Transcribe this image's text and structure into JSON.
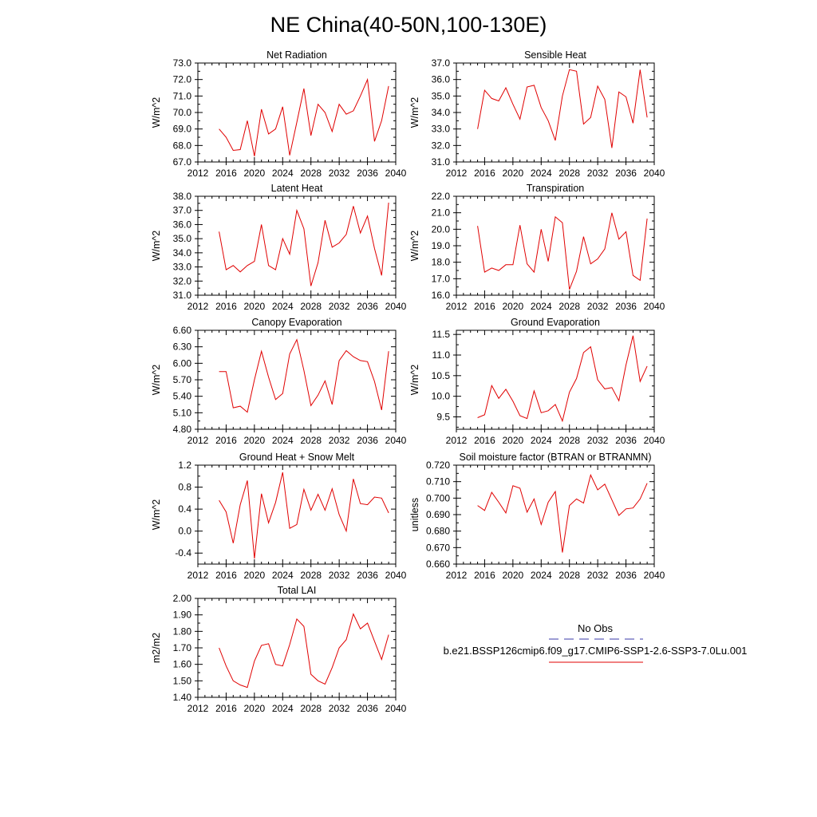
{
  "figure_title": "NE China(40-50N,100-130E)",
  "legend": {
    "obs_label": "No Obs",
    "obs_color": "#3a3aa8",
    "model_label": "b.e21.BSSP126cmip6.f09_g17.CMIP6-SSP1-2.6-SSP3-7.0Lu.001",
    "model_color": "#e00000"
  },
  "chart_data": [
    {
      "type": "line",
      "title": "Net Radiation",
      "ylabel": "W/m^2",
      "xlim": [
        2012,
        2040
      ],
      "ylim": [
        67.0,
        73.0
      ],
      "x_ticks": [
        "2012",
        "2016",
        "2020",
        "2024",
        "2028",
        "2032",
        "2036",
        "2040"
      ],
      "y_ticks": [
        "67.0",
        "68.0",
        "69.0",
        "70.0",
        "71.0",
        "72.0",
        "73.0"
      ],
      "x": [
        2015,
        2016,
        2017,
        2018,
        2019,
        2020,
        2021,
        2022,
        2023,
        2024,
        2025,
        2026,
        2027,
        2028,
        2029,
        2030,
        2031,
        2032,
        2033,
        2034,
        2035,
        2036,
        2037,
        2038,
        2039
      ],
      "values": [
        69.0,
        68.5,
        67.7,
        67.75,
        69.5,
        67.35,
        70.2,
        68.7,
        69.0,
        70.35,
        67.4,
        69.4,
        71.45,
        68.6,
        70.5,
        70.0,
        68.85,
        70.5,
        69.9,
        70.1,
        71.0,
        72.0,
        68.25,
        69.5,
        71.6
      ]
    },
    {
      "type": "line",
      "title": "Sensible Heat",
      "ylabel": "W/m^2",
      "xlim": [
        2012,
        2040
      ],
      "ylim": [
        31.0,
        37.0
      ],
      "x_ticks": [
        "2012",
        "2016",
        "2020",
        "2024",
        "2028",
        "2032",
        "2036",
        "2040"
      ],
      "y_ticks": [
        "31.0",
        "32.0",
        "33.0",
        "34.0",
        "35.0",
        "36.0",
        "37.0"
      ],
      "x": [
        2015,
        2016,
        2017,
        2018,
        2019,
        2020,
        2021,
        2022,
        2023,
        2024,
        2025,
        2026,
        2027,
        2028,
        2029,
        2030,
        2031,
        2032,
        2033,
        2034,
        2035,
        2036,
        2037,
        2038,
        2039
      ],
      "values": [
        33.0,
        35.35,
        34.85,
        34.7,
        35.5,
        34.5,
        33.6,
        35.55,
        35.65,
        34.3,
        33.5,
        32.3,
        35.0,
        36.6,
        36.5,
        33.3,
        33.7,
        35.6,
        34.8,
        31.85,
        35.25,
        34.95,
        33.35,
        36.6,
        33.7
      ]
    },
    {
      "type": "line",
      "title": "Latent Heat",
      "ylabel": "W/m^2",
      "xlim": [
        2012,
        2040
      ],
      "ylim": [
        31.0,
        38.0
      ],
      "x_ticks": [
        "2012",
        "2016",
        "2020",
        "2024",
        "2028",
        "2032",
        "2036",
        "2040"
      ],
      "y_ticks": [
        "31.0",
        "32.0",
        "33.0",
        "34.0",
        "35.0",
        "36.0",
        "37.0",
        "38.0"
      ],
      "x": [
        2015,
        2016,
        2017,
        2018,
        2019,
        2020,
        2021,
        2022,
        2023,
        2024,
        2025,
        2026,
        2027,
        2028,
        2029,
        2030,
        2031,
        2032,
        2033,
        2034,
        2035,
        2036,
        2037,
        2038,
        2039
      ],
      "values": [
        35.5,
        32.8,
        33.1,
        32.65,
        33.1,
        33.4,
        36.0,
        33.1,
        32.8,
        35.0,
        33.9,
        37.0,
        35.7,
        31.65,
        33.3,
        36.3,
        34.4,
        34.7,
        35.3,
        37.3,
        35.4,
        36.6,
        34.3,
        32.4,
        37.55
      ]
    },
    {
      "type": "line",
      "title": "Transpiration",
      "ylabel": "W/m^2",
      "xlim": [
        2012,
        2040
      ],
      "ylim": [
        16.0,
        22.0
      ],
      "x_ticks": [
        "2012",
        "2016",
        "2020",
        "2024",
        "2028",
        "2032",
        "2036",
        "2040"
      ],
      "y_ticks": [
        "16.0",
        "17.0",
        "18.0",
        "19.0",
        "20.0",
        "21.0",
        "22.0"
      ],
      "x": [
        2015,
        2016,
        2017,
        2018,
        2019,
        2020,
        2021,
        2022,
        2023,
        2024,
        2025,
        2026,
        2027,
        2028,
        2029,
        2030,
        2031,
        2032,
        2033,
        2034,
        2035,
        2036,
        2037,
        2038,
        2039
      ],
      "values": [
        20.2,
        17.4,
        17.65,
        17.5,
        17.85,
        17.85,
        20.25,
        17.9,
        17.4,
        20.0,
        18.05,
        20.75,
        20.4,
        16.35,
        17.45,
        19.55,
        17.9,
        18.2,
        18.8,
        21.0,
        19.4,
        19.85,
        17.2,
        16.9,
        20.65
      ]
    },
    {
      "type": "line",
      "title": "Canopy Evaporation",
      "ylabel": "W/m^2",
      "xlim": [
        2012,
        2040
      ],
      "ylim": [
        4.8,
        6.6
      ],
      "x_ticks": [
        "2012",
        "2016",
        "2020",
        "2024",
        "2028",
        "2032",
        "2036",
        "2040"
      ],
      "y_ticks": [
        "4.80",
        "5.10",
        "5.40",
        "5.70",
        "6.00",
        "6.30",
        "6.60"
      ],
      "x": [
        2015,
        2016,
        2017,
        2018,
        2019,
        2020,
        2021,
        2022,
        2023,
        2024,
        2025,
        2026,
        2027,
        2028,
        2029,
        2030,
        2031,
        2032,
        2033,
        2034,
        2035,
        2036,
        2037,
        2038,
        2039
      ],
      "values": [
        5.85,
        5.85,
        5.19,
        5.22,
        5.11,
        5.7,
        6.22,
        5.75,
        5.34,
        5.45,
        6.17,
        6.43,
        5.87,
        5.23,
        5.42,
        5.68,
        5.25,
        6.05,
        6.23,
        6.12,
        6.05,
        6.03,
        5.67,
        5.15,
        6.22
      ]
    },
    {
      "type": "line",
      "title": "Ground Evaporation",
      "ylabel": "W/m^2",
      "xlim": [
        2012,
        2040
      ],
      "ylim": [
        9.2,
        11.6
      ],
      "x_ticks": [
        "2012",
        "2016",
        "2020",
        "2024",
        "2028",
        "2032",
        "2036",
        "2040"
      ],
      "y_ticks": [
        "9.5",
        "10.0",
        "10.5",
        "11.0",
        "11.5"
      ],
      "x": [
        2015,
        2016,
        2017,
        2018,
        2019,
        2020,
        2021,
        2022,
        2023,
        2024,
        2025,
        2026,
        2027,
        2028,
        2029,
        2030,
        2031,
        2032,
        2033,
        2034,
        2035,
        2036,
        2037,
        2038,
        2039
      ],
      "values": [
        9.48,
        9.55,
        10.26,
        9.95,
        10.17,
        9.88,
        9.53,
        9.46,
        10.13,
        9.6,
        9.65,
        9.8,
        9.4,
        10.1,
        10.43,
        11.06,
        11.2,
        10.4,
        10.18,
        10.21,
        9.89,
        10.76,
        11.47,
        10.36,
        10.73
      ]
    },
    {
      "type": "line",
      "title": "Ground Heat + Snow Melt",
      "ylabel": "W/m^2",
      "xlim": [
        2012,
        2040
      ],
      "ylim": [
        -0.6,
        1.2
      ],
      "x_ticks": [
        "2012",
        "2016",
        "2020",
        "2024",
        "2028",
        "2032",
        "2036",
        "2040"
      ],
      "y_ticks": [
        "-0.4",
        "0.0",
        "0.4",
        "0.8",
        "1.2"
      ],
      "x": [
        2015,
        2016,
        2017,
        2018,
        2019,
        2020,
        2021,
        2022,
        2023,
        2024,
        2025,
        2026,
        2027,
        2028,
        2029,
        2030,
        2031,
        2032,
        2033,
        2034,
        2035,
        2036,
        2037,
        2038,
        2039
      ],
      "values": [
        0.56,
        0.35,
        -0.22,
        0.48,
        0.92,
        -0.5,
        0.68,
        0.15,
        0.52,
        1.07,
        0.05,
        0.12,
        0.76,
        0.38,
        0.67,
        0.38,
        0.77,
        0.3,
        0.0,
        0.95,
        0.5,
        0.48,
        0.62,
        0.6,
        0.33
      ]
    },
    {
      "type": "line",
      "title": "Soil moisture factor (BTRAN or BTRANMN)",
      "ylabel": "unitless",
      "xlim": [
        2012,
        2040
      ],
      "ylim": [
        0.66,
        0.72
      ],
      "x_ticks": [
        "2012",
        "2016",
        "2020",
        "2024",
        "2028",
        "2032",
        "2036",
        "2040"
      ],
      "y_ticks": [
        "0.660",
        "0.670",
        "0.680",
        "0.690",
        "0.700",
        "0.710",
        "0.720"
      ],
      "x": [
        2015,
        2016,
        2017,
        2018,
        2019,
        2020,
        2021,
        2022,
        2023,
        2024,
        2025,
        2026,
        2027,
        2028,
        2029,
        2030,
        2031,
        2032,
        2033,
        2034,
        2035,
        2036,
        2037,
        2038,
        2039
      ],
      "values": [
        0.6955,
        0.6925,
        0.7035,
        0.6975,
        0.691,
        0.7075,
        0.706,
        0.6915,
        0.6995,
        0.684,
        0.6975,
        0.704,
        0.667,
        0.6955,
        0.6995,
        0.697,
        0.714,
        0.705,
        0.7085,
        0.699,
        0.6895,
        0.6935,
        0.694,
        0.6995,
        0.709
      ]
    },
    {
      "type": "line",
      "title": "Total LAI",
      "ylabel": "m2/m2",
      "xlim": [
        2012,
        2040
      ],
      "ylim": [
        1.4,
        2.0
      ],
      "x_ticks": [
        "2012",
        "2016",
        "2020",
        "2024",
        "2028",
        "2032",
        "2036",
        "2040"
      ],
      "y_ticks": [
        "1.40",
        "1.50",
        "1.60",
        "1.70",
        "1.80",
        "1.90",
        "2.00"
      ],
      "x": [
        2015,
        2016,
        2017,
        2018,
        2019,
        2020,
        2021,
        2022,
        2023,
        2024,
        2025,
        2026,
        2027,
        2028,
        2029,
        2030,
        2031,
        2032,
        2033,
        2034,
        2035,
        2036,
        2037,
        2038,
        2039
      ],
      "values": [
        1.7,
        1.59,
        1.5,
        1.475,
        1.46,
        1.62,
        1.715,
        1.725,
        1.6,
        1.59,
        1.72,
        1.875,
        1.83,
        1.54,
        1.5,
        1.48,
        1.58,
        1.7,
        1.75,
        1.905,
        1.815,
        1.85,
        1.74,
        1.63,
        1.78
      ]
    }
  ]
}
